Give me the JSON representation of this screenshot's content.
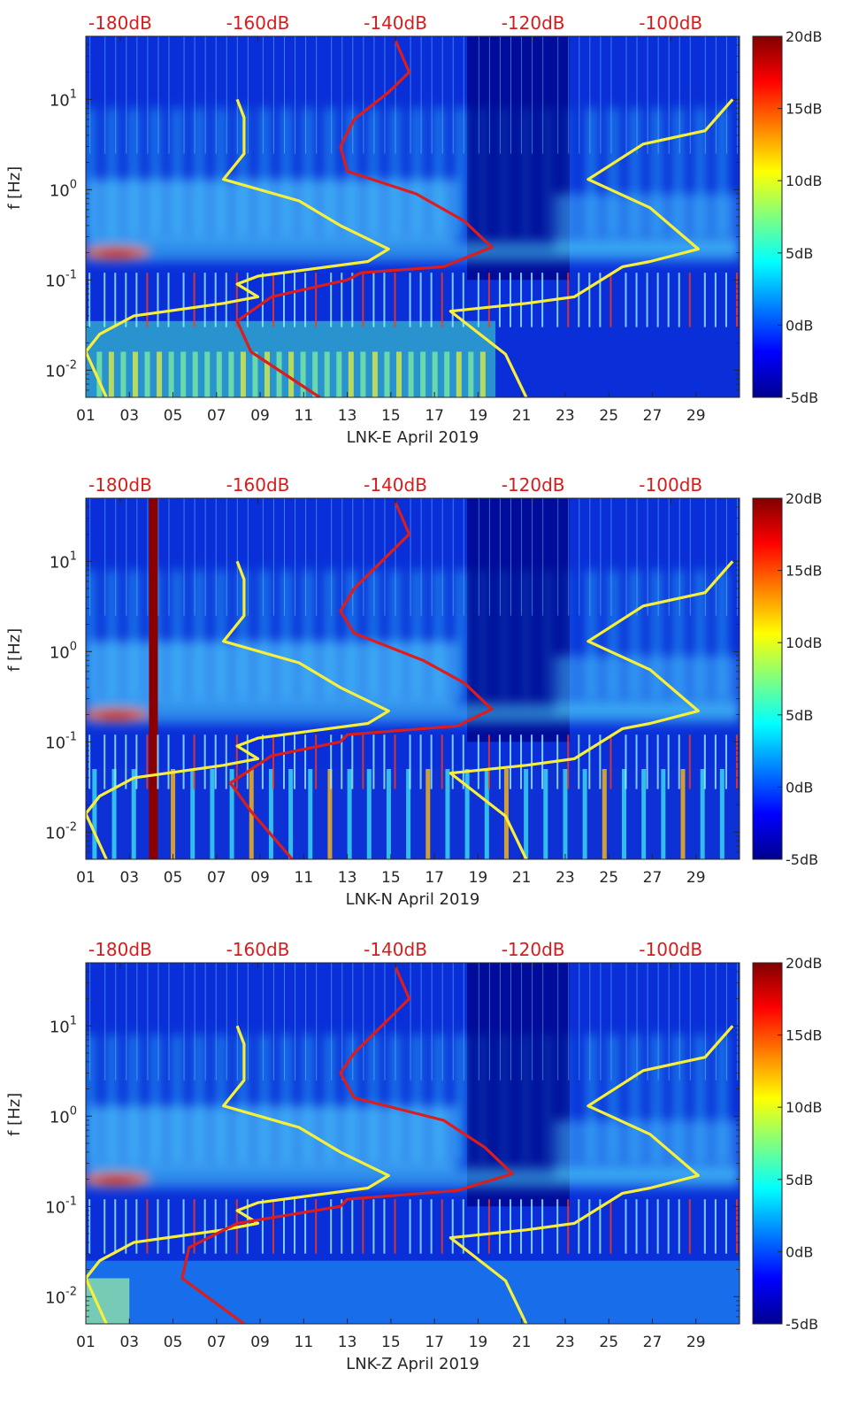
{
  "colors": {
    "noise_model_lines": "#f7ef3a",
    "station_psd_line": "#dd1c1c",
    "top_axis_text": "#d81b1b",
    "axis_text": "#262626"
  },
  "colorbar": {
    "range_db": [
      -5,
      20
    ],
    "tick_labels": [
      "20dB",
      "15dB",
      "10dB",
      "5dB",
      "0dB",
      "-5dB"
    ]
  },
  "chart_data": [
    {
      "type": "heatmap",
      "title": "",
      "xlabel": "LNK-E April 2019",
      "ylabel": "f [Hz]",
      "x_tick_labels": [
        "01",
        "03",
        "05",
        "07",
        "09",
        "11",
        "13",
        "15",
        "17",
        "19",
        "21",
        "23",
        "25",
        "27",
        "29"
      ],
      "xlim_days": [
        1,
        31
      ],
      "ylim_hz": [
        0.005,
        50
      ],
      "y_scale": "log",
      "y_tick_labels": [
        {
          "base": "10",
          "exp": "1"
        },
        {
          "base": "10",
          "exp": "0"
        },
        {
          "base": "10",
          "exp": "-1"
        },
        {
          "base": "10",
          "exp": "-2"
        }
      ],
      "top_axis_tick_labels": [
        "-180dB",
        "-160dB",
        "-140dB",
        "-120dB",
        "-100dB"
      ],
      "top_axis_range_db": [
        -185,
        -90
      ],
      "colorbar_range_db": [
        -5,
        20
      ],
      "curve_points_are": "[top-axis power dB, frequency Hz]",
      "overlays": [
        {
          "name": "Low noise model",
          "color": "yellow",
          "points": [
            [
              -163,
              10
            ],
            [
              -162,
              6.3
            ],
            [
              -162,
              2.5
            ],
            [
              -165,
              1.3
            ],
            [
              -154,
              0.75
            ],
            [
              -148,
              0.4
            ],
            [
              -141,
              0.22
            ],
            [
              -144,
              0.16
            ],
            [
              -160,
              0.11
            ],
            [
              -163,
              0.09
            ],
            [
              -160,
              0.065
            ],
            [
              -165,
              0.055
            ],
            [
              -178,
              0.04
            ],
            [
              -183,
              0.025
            ],
            [
              -185,
              0.016
            ],
            [
              -182,
              0.005
            ]
          ]
        },
        {
          "name": "High noise model",
          "color": "yellow",
          "points": [
            [
              -91,
              10
            ],
            [
              -95,
              4.5
            ],
            [
              -104,
              3.2
            ],
            [
              -112,
              1.3
            ],
            [
              -103,
              0.63
            ],
            [
              -96,
              0.22
            ],
            [
              -103,
              0.16
            ],
            [
              -107,
              0.14
            ],
            [
              -114,
              0.065
            ],
            [
              -121,
              0.055
            ],
            [
              -132,
              0.045
            ],
            [
              -124,
              0.015
            ],
            [
              -121,
              0.005
            ]
          ]
        },
        {
          "name": "Station median PSD",
          "color": "red",
          "points": [
            [
              -140,
              45
            ],
            [
              -138,
              20
            ],
            [
              -141,
              12
            ],
            [
              -146,
              6
            ],
            [
              -148,
              3
            ],
            [
              -147,
              1.6
            ],
            [
              -137,
              0.9
            ],
            [
              -130,
              0.45
            ],
            [
              -126,
              0.23
            ],
            [
              -133,
              0.14
            ],
            [
              -145,
              0.12
            ],
            [
              -147,
              0.1
            ],
            [
              -158,
              0.065
            ],
            [
              -163,
              0.035
            ],
            [
              -161,
              0.016
            ],
            [
              -151,
              0.005
            ]
          ]
        }
      ]
    },
    {
      "type": "heatmap",
      "title": "",
      "xlabel": "LNK-N April 2019",
      "ylabel": "f [Hz]",
      "x_tick_labels": [
        "01",
        "03",
        "05",
        "07",
        "09",
        "11",
        "13",
        "15",
        "17",
        "19",
        "21",
        "23",
        "25",
        "27",
        "29"
      ],
      "xlim_days": [
        1,
        31
      ],
      "ylim_hz": [
        0.005,
        50
      ],
      "y_scale": "log",
      "y_tick_labels": [
        {
          "base": "10",
          "exp": "1"
        },
        {
          "base": "10",
          "exp": "0"
        },
        {
          "base": "10",
          "exp": "-1"
        },
        {
          "base": "10",
          "exp": "-2"
        }
      ],
      "top_axis_tick_labels": [
        "-180dB",
        "-160dB",
        "-140dB",
        "-120dB",
        "-100dB"
      ],
      "top_axis_range_db": [
        -185,
        -90
      ],
      "colorbar_range_db": [
        -5,
        20
      ],
      "curve_points_are": "[top-axis power dB, frequency Hz]",
      "overlays": [
        {
          "name": "Low noise model",
          "color": "yellow",
          "points": [
            [
              -163,
              10
            ],
            [
              -162,
              6.3
            ],
            [
              -162,
              2.5
            ],
            [
              -165,
              1.3
            ],
            [
              -154,
              0.75
            ],
            [
              -148,
              0.4
            ],
            [
              -141,
              0.22
            ],
            [
              -144,
              0.16
            ],
            [
              -160,
              0.11
            ],
            [
              -163,
              0.09
            ],
            [
              -160,
              0.065
            ],
            [
              -165,
              0.055
            ],
            [
              -178,
              0.04
            ],
            [
              -183,
              0.025
            ],
            [
              -185,
              0.016
            ],
            [
              -182,
              0.005
            ]
          ]
        },
        {
          "name": "High noise model",
          "color": "yellow",
          "points": [
            [
              -91,
              10
            ],
            [
              -95,
              4.5
            ],
            [
              -104,
              3.2
            ],
            [
              -112,
              1.3
            ],
            [
              -103,
              0.63
            ],
            [
              -96,
              0.22
            ],
            [
              -103,
              0.16
            ],
            [
              -107,
              0.14
            ],
            [
              -114,
              0.065
            ],
            [
              -121,
              0.055
            ],
            [
              -132,
              0.045
            ],
            [
              -124,
              0.015
            ],
            [
              -121,
              0.005
            ]
          ]
        },
        {
          "name": "Station median PSD",
          "color": "red",
          "points": [
            [
              -140,
              45
            ],
            [
              -138,
              20
            ],
            [
              -142,
              10
            ],
            [
              -146,
              5
            ],
            [
              -148,
              2.8
            ],
            [
              -146,
              1.6
            ],
            [
              -136,
              0.8
            ],
            [
              -130,
              0.45
            ],
            [
              -126,
              0.23
            ],
            [
              -131,
              0.15
            ],
            [
              -147,
              0.12
            ],
            [
              -148,
              0.1
            ],
            [
              -158,
              0.07
            ],
            [
              -164,
              0.035
            ],
            [
              -161,
              0.017
            ],
            [
              -155,
              0.005
            ]
          ]
        }
      ]
    },
    {
      "type": "heatmap",
      "title": "",
      "xlabel": "LNK-Z April 2019",
      "ylabel": "f [Hz]",
      "x_tick_labels": [
        "01",
        "03",
        "05",
        "07",
        "09",
        "11",
        "13",
        "15",
        "17",
        "19",
        "21",
        "23",
        "25",
        "27",
        "29"
      ],
      "xlim_days": [
        1,
        31
      ],
      "ylim_hz": [
        0.005,
        50
      ],
      "y_scale": "log",
      "y_tick_labels": [
        {
          "base": "10",
          "exp": "1"
        },
        {
          "base": "10",
          "exp": "0"
        },
        {
          "base": "10",
          "exp": "-1"
        },
        {
          "base": "10",
          "exp": "-2"
        }
      ],
      "top_axis_tick_labels": [
        "-180dB",
        "-160dB",
        "-140dB",
        "-120dB",
        "-100dB"
      ],
      "top_axis_range_db": [
        -185,
        -90
      ],
      "colorbar_range_db": [
        -5,
        20
      ],
      "curve_points_are": "[top-axis power dB, frequency Hz]",
      "overlays": [
        {
          "name": "Low noise model",
          "color": "yellow",
          "points": [
            [
              -163,
              10
            ],
            [
              -162,
              6.3
            ],
            [
              -162,
              2.5
            ],
            [
              -165,
              1.3
            ],
            [
              -154,
              0.75
            ],
            [
              -148,
              0.4
            ],
            [
              -141,
              0.22
            ],
            [
              -144,
              0.16
            ],
            [
              -160,
              0.11
            ],
            [
              -163,
              0.09
            ],
            [
              -160,
              0.065
            ],
            [
              -165,
              0.055
            ],
            [
              -178,
              0.04
            ],
            [
              -183,
              0.025
            ],
            [
              -185,
              0.016
            ],
            [
              -182,
              0.005
            ]
          ]
        },
        {
          "name": "High noise model",
          "color": "yellow",
          "points": [
            [
              -91,
              10
            ],
            [
              -95,
              4.5
            ],
            [
              -104,
              3.2
            ],
            [
              -112,
              1.3
            ],
            [
              -103,
              0.63
            ],
            [
              -96,
              0.22
            ],
            [
              -103,
              0.16
            ],
            [
              -107,
              0.14
            ],
            [
              -114,
              0.065
            ],
            [
              -121,
              0.055
            ],
            [
              -132,
              0.045
            ],
            [
              -124,
              0.015
            ],
            [
              -121,
              0.005
            ]
          ]
        },
        {
          "name": "Station median PSD",
          "color": "red",
          "points": [
            [
              -140,
              45
            ],
            [
              -138,
              20
            ],
            [
              -142,
              10
            ],
            [
              -146,
              5
            ],
            [
              -148,
              3
            ],
            [
              -146,
              1.6
            ],
            [
              -133,
              0.9
            ],
            [
              -127,
              0.45
            ],
            [
              -123,
              0.23
            ],
            [
              -131,
              0.15
            ],
            [
              -147,
              0.12
            ],
            [
              -148,
              0.1
            ],
            [
              -163,
              0.065
            ],
            [
              -170,
              0.035
            ],
            [
              -171,
              0.016
            ],
            [
              -162,
              0.005
            ]
          ]
        }
      ]
    }
  ]
}
